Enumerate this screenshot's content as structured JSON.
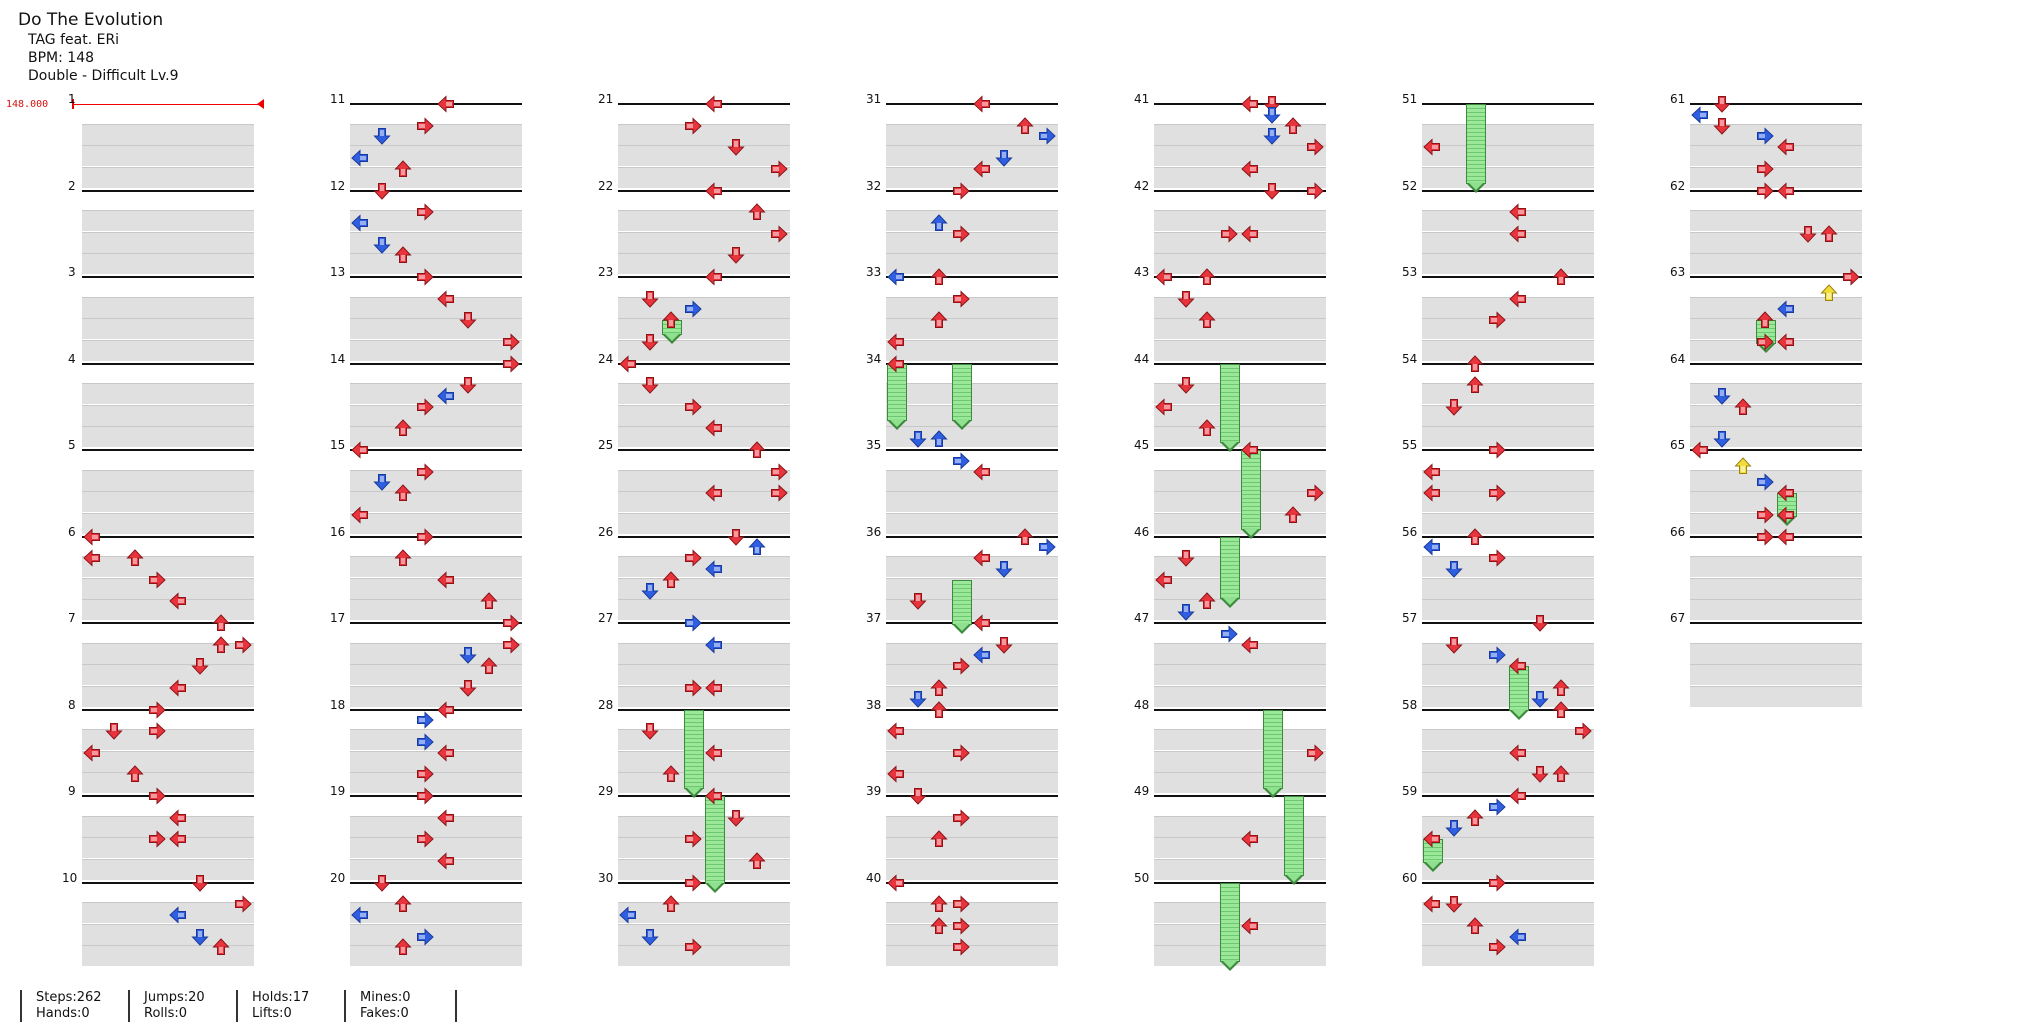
{
  "song": {
    "title": "Do The Evolution",
    "artist": "TAG feat. ERi",
    "bpm_label": "BPM: 148",
    "difficulty": "Double - Difficult Lv.9",
    "bpm_marker": "148.000"
  },
  "measure_labels": [
    "1",
    "2",
    "3",
    "4",
    "5",
    "6",
    "7",
    "8",
    "9",
    "10",
    "11",
    "12",
    "13",
    "14",
    "15",
    "16",
    "17",
    "18",
    "19",
    "20",
    "21",
    "22",
    "23",
    "24",
    "25",
    "26",
    "27",
    "28",
    "29",
    "30",
    "31",
    "32",
    "33",
    "34",
    "35",
    "36",
    "37",
    "38",
    "39",
    "40",
    "41",
    "42",
    "43",
    "44",
    "45",
    "46",
    "47",
    "48",
    "49",
    "50",
    "51",
    "52",
    "53",
    "54",
    "55",
    "56",
    "57",
    "58",
    "59",
    "60",
    "61",
    "62",
    "63",
    "64",
    "65",
    "66",
    "67"
  ],
  "stats": {
    "steps": "Steps:262",
    "hands": "Hands:0",
    "jumps": "Jumps:20",
    "rolls": "Rolls:0",
    "holds": "Holds:17",
    "lifts": "Lifts:0",
    "mines": "Mines:0",
    "fakes": "Fakes:0"
  },
  "colors": {
    "quarter": "#e8343c",
    "eighth": "#2f5fe0",
    "sixteenth": "#f2dc3c",
    "hold": "#7ed87e"
  },
  "notes": [
    [
      6,
      0.0,
      0,
      "L",
      "r"
    ],
    [
      6,
      0.25,
      0,
      "L",
      "r"
    ],
    [
      6,
      0.25,
      2,
      "U",
      "r"
    ],
    [
      6,
      0.5,
      3,
      "R",
      "r"
    ],
    [
      6,
      0.75,
      4,
      "L",
      "r"
    ],
    [
      7,
      0.0,
      6,
      "U",
      "r"
    ],
    [
      7,
      0.25,
      6,
      "U",
      "r"
    ],
    [
      7,
      0.25,
      7,
      "R",
      "r"
    ],
    [
      7,
      0.5,
      5,
      "D",
      "r"
    ],
    [
      7,
      0.75,
      4,
      "L",
      "r"
    ],
    [
      8,
      0.0,
      3,
      "R",
      "r"
    ],
    [
      8,
      0.25,
      1,
      "D",
      "r"
    ],
    [
      8,
      0.25,
      3,
      "R",
      "r"
    ],
    [
      8,
      0.5,
      0,
      "L",
      "r"
    ],
    [
      8,
      0.75,
      2,
      "U",
      "r"
    ],
    [
      9,
      0.0,
      3,
      "R",
      "r"
    ],
    [
      9,
      0.25,
      4,
      "L",
      "r"
    ],
    [
      9,
      0.5,
      3,
      "R",
      "r"
    ],
    [
      9,
      0.5,
      4,
      "L",
      "r"
    ],
    [
      10,
      0.0,
      5,
      "D",
      "r"
    ],
    [
      10,
      0.25,
      7,
      "R",
      "r"
    ],
    [
      10,
      0.375,
      4,
      "L",
      "b"
    ],
    [
      10,
      0.625,
      5,
      "D",
      "b"
    ],
    [
      10,
      0.75,
      6,
      "U",
      "r"
    ],
    [
      11,
      0.0,
      4,
      "L",
      "r"
    ],
    [
      11,
      0.25,
      3,
      "R",
      "r"
    ],
    [
      11,
      0.375,
      1,
      "D",
      "b"
    ],
    [
      11,
      0.625,
      0,
      "L",
      "b"
    ],
    [
      11,
      0.75,
      2,
      "U",
      "r"
    ],
    [
      12,
      0.0,
      1,
      "D",
      "r"
    ],
    [
      12,
      0.25,
      3,
      "R",
      "r"
    ],
    [
      12,
      0.375,
      0,
      "L",
      "b"
    ],
    [
      12,
      0.625,
      1,
      "D",
      "b"
    ],
    [
      12,
      0.75,
      2,
      "U",
      "r"
    ],
    [
      13,
      0.0,
      3,
      "R",
      "r"
    ],
    [
      13,
      0.25,
      4,
      "L",
      "r"
    ],
    [
      13,
      0.5,
      5,
      "D",
      "r"
    ],
    [
      13,
      0.75,
      7,
      "R",
      "r"
    ],
    [
      14,
      0.0,
      7,
      "R",
      "r"
    ],
    [
      14,
      0.25,
      5,
      "D",
      "r"
    ],
    [
      14,
      0.375,
      4,
      "L",
      "b"
    ],
    [
      14,
      0.5,
      3,
      "R",
      "r"
    ],
    [
      14,
      0.75,
      2,
      "U",
      "r"
    ],
    [
      15,
      0.0,
      0,
      "L",
      "r"
    ],
    [
      15,
      0.25,
      3,
      "R",
      "r"
    ],
    [
      15,
      0.375,
      1,
      "D",
      "b"
    ],
    [
      15,
      0.5,
      2,
      "U",
      "r"
    ],
    [
      15,
      0.75,
      0,
      "L",
      "r"
    ],
    [
      16,
      0.0,
      3,
      "R",
      "r"
    ],
    [
      16,
      0.25,
      2,
      "U",
      "r"
    ],
    [
      16,
      0.5,
      4,
      "L",
      "r"
    ],
    [
      16,
      0.75,
      6,
      "U",
      "r"
    ],
    [
      17,
      0.0,
      7,
      "R",
      "r"
    ],
    [
      17,
      0.25,
      7,
      "R",
      "r"
    ],
    [
      17,
      0.375,
      5,
      "D",
      "b"
    ],
    [
      17,
      0.5,
      6,
      "U",
      "r"
    ],
    [
      17,
      0.75,
      5,
      "D",
      "r"
    ],
    [
      18,
      0.0,
      4,
      "L",
      "r"
    ],
    [
      18,
      0.125,
      3,
      "R",
      "b"
    ],
    [
      18,
      0.375,
      3,
      "R",
      "b"
    ],
    [
      18,
      0.5,
      4,
      "L",
      "r"
    ],
    [
      18,
      0.75,
      3,
      "R",
      "r"
    ],
    [
      19,
      0.0,
      3,
      "R",
      "r"
    ],
    [
      19,
      0.25,
      4,
      "L",
      "r"
    ],
    [
      19,
      0.5,
      3,
      "R",
      "r"
    ],
    [
      19,
      0.75,
      4,
      "L",
      "r"
    ],
    [
      20,
      0.0,
      1,
      "D",
      "r"
    ],
    [
      20,
      0.25,
      2,
      "U",
      "r"
    ],
    [
      20,
      0.375,
      0,
      "L",
      "b"
    ],
    [
      20,
      0.625,
      3,
      "R",
      "b"
    ],
    [
      20,
      0.75,
      2,
      "U",
      "r"
    ],
    [
      21,
      0.0,
      4,
      "L",
      "r"
    ],
    [
      21,
      0.25,
      3,
      "R",
      "r"
    ],
    [
      21,
      0.5,
      5,
      "D",
      "r"
    ],
    [
      21,
      0.75,
      7,
      "R",
      "r"
    ],
    [
      22,
      0.0,
      4,
      "L",
      "r"
    ],
    [
      22,
      0.25,
      6,
      "U",
      "r"
    ],
    [
      22,
      0.5,
      7,
      "R",
      "r"
    ],
    [
      22,
      0.75,
      5,
      "D",
      "r"
    ],
    [
      23,
      0.0,
      4,
      "L",
      "r"
    ],
    [
      23,
      0.25,
      1,
      "D",
      "r"
    ],
    [
      23,
      0.375,
      3,
      "R",
      "b"
    ],
    [
      23,
      0.5,
      2,
      "U",
      "r"
    ],
    [
      23,
      0.75,
      1,
      "D",
      "r"
    ],
    [
      24,
      0.0,
      0,
      "L",
      "r"
    ],
    [
      24,
      0.25,
      1,
      "D",
      "r"
    ],
    [
      24,
      0.5,
      3,
      "R",
      "r"
    ],
    [
      24,
      0.75,
      4,
      "L",
      "r"
    ],
    [
      25,
      0.0,
      6,
      "U",
      "r"
    ],
    [
      25,
      0.25,
      7,
      "R",
      "r"
    ],
    [
      25,
      0.5,
      4,
      "L",
      "r"
    ],
    [
      25,
      0.5,
      7,
      "R",
      "r"
    ],
    [
      26,
      0.0,
      5,
      "D",
      "r"
    ],
    [
      26,
      0.125,
      6,
      "U",
      "b"
    ],
    [
      26,
      0.25,
      3,
      "R",
      "r"
    ],
    [
      26,
      0.375,
      4,
      "L",
      "b"
    ],
    [
      26,
      0.5,
      2,
      "U",
      "r"
    ],
    [
      26,
      0.625,
      1,
      "D",
      "b"
    ],
    [
      27,
      0.0,
      3,
      "R",
      "b"
    ],
    [
      27,
      0.25,
      4,
      "L",
      "b"
    ],
    [
      27,
      0.75,
      3,
      "R",
      "r"
    ],
    [
      27,
      0.75,
      4,
      "L",
      "r"
    ],
    [
      28,
      0.25,
      1,
      "D",
      "r"
    ],
    [
      28,
      0.5,
      4,
      "L",
      "r"
    ],
    [
      28,
      0.75,
      2,
      "U",
      "r"
    ],
    [
      29,
      0.0,
      4,
      "L",
      "r"
    ],
    [
      29,
      0.25,
      5,
      "D",
      "r"
    ],
    [
      29,
      0.5,
      3,
      "R",
      "r"
    ],
    [
      29,
      0.75,
      6,
      "U",
      "r"
    ],
    [
      30,
      0.0,
      3,
      "R",
      "r"
    ],
    [
      30,
      0.25,
      2,
      "U",
      "r"
    ],
    [
      30,
      0.375,
      0,
      "L",
      "b"
    ],
    [
      30,
      0.625,
      1,
      "D",
      "b"
    ],
    [
      30,
      0.75,
      3,
      "R",
      "r"
    ],
    [
      31,
      0.0,
      4,
      "L",
      "r"
    ],
    [
      31,
      0.25,
      6,
      "U",
      "r"
    ],
    [
      31,
      0.375,
      7,
      "R",
      "b"
    ],
    [
      31,
      0.625,
      5,
      "D",
      "b"
    ],
    [
      31,
      0.75,
      4,
      "L",
      "r"
    ],
    [
      32,
      0.0,
      3,
      "R",
      "r"
    ],
    [
      32,
      0.375,
      2,
      "U",
      "b"
    ],
    [
      32,
      0.5,
      3,
      "R",
      "r"
    ],
    [
      33,
      0.0,
      0,
      "L",
      "b"
    ],
    [
      33,
      0.0,
      2,
      "U",
      "r"
    ],
    [
      33,
      0.25,
      3,
      "R",
      "r"
    ],
    [
      33,
      0.5,
      2,
      "U",
      "r"
    ],
    [
      33,
      0.75,
      0,
      "L",
      "r"
    ],
    [
      34,
      0.0,
      0,
      "L",
      "r"
    ],
    [
      34,
      0.875,
      1,
      "D",
      "b"
    ],
    [
      34,
      0.875,
      2,
      "U",
      "b"
    ],
    [
      35,
      0.125,
      3,
      "R",
      "b"
    ],
    [
      35,
      0.25,
      4,
      "L",
      "r"
    ],
    [
      36,
      0.0,
      6,
      "U",
      "r"
    ],
    [
      36,
      0.125,
      7,
      "R",
      "b"
    ],
    [
      36,
      0.25,
      4,
      "L",
      "r"
    ],
    [
      36,
      0.375,
      5,
      "D",
      "b"
    ],
    [
      36,
      0.75,
      1,
      "D",
      "r"
    ],
    [
      37,
      0.0,
      4,
      "L",
      "r"
    ],
    [
      37,
      0.25,
      5,
      "D",
      "r"
    ],
    [
      37,
      0.375,
      4,
      "L",
      "b"
    ],
    [
      37,
      0.5,
      3,
      "R",
      "r"
    ],
    [
      37,
      0.75,
      2,
      "U",
      "r"
    ],
    [
      37,
      0.875,
      1,
      "D",
      "b"
    ],
    [
      38,
      0.0,
      2,
      "U",
      "r"
    ],
    [
      38,
      0.25,
      0,
      "L",
      "r"
    ],
    [
      38,
      0.5,
      3,
      "R",
      "r"
    ],
    [
      38,
      0.75,
      0,
      "L",
      "r"
    ],
    [
      39,
      0.0,
      1,
      "D",
      "r"
    ],
    [
      39,
      0.25,
      3,
      "R",
      "r"
    ],
    [
      39,
      0.5,
      2,
      "U",
      "r"
    ],
    [
      40,
      0.0,
      0,
      "L",
      "r"
    ],
    [
      40,
      0.25,
      2,
      "U",
      "r"
    ],
    [
      40,
      0.25,
      3,
      "R",
      "r"
    ],
    [
      40,
      0.5,
      2,
      "U",
      "r"
    ],
    [
      40,
      0.5,
      3,
      "R",
      "r"
    ],
    [
      40,
      0.75,
      3,
      "R",
      "r"
    ],
    [
      41,
      0.0,
      4,
      "L",
      "r"
    ],
    [
      41,
      0.0,
      5,
      "D",
      "r"
    ],
    [
      41,
      0.125,
      5,
      "D",
      "b"
    ],
    [
      41,
      0.25,
      6,
      "U",
      "r"
    ],
    [
      41,
      0.375,
      5,
      "D",
      "b"
    ],
    [
      41,
      0.5,
      7,
      "R",
      "r"
    ],
    [
      41,
      0.75,
      4,
      "L",
      "r"
    ],
    [
      42,
      0.0,
      5,
      "D",
      "r"
    ],
    [
      42,
      0.0,
      7,
      "R",
      "r"
    ],
    [
      42,
      0.5,
      3,
      "R",
      "r"
    ],
    [
      42,
      0.5,
      4,
      "L",
      "r"
    ],
    [
      43,
      0.0,
      0,
      "L",
      "r"
    ],
    [
      43,
      0.0,
      2,
      "U",
      "r"
    ],
    [
      43,
      0.25,
      1,
      "D",
      "r"
    ],
    [
      43,
      0.5,
      2,
      "U",
      "r"
    ],
    [
      44,
      0.25,
      1,
      "D",
      "r"
    ],
    [
      44,
      0.5,
      0,
      "L",
      "r"
    ],
    [
      44,
      0.75,
      2,
      "U",
      "r"
    ],
    [
      45,
      0.0,
      4,
      "L",
      "r"
    ],
    [
      45,
      0.5,
      7,
      "R",
      "r"
    ],
    [
      45,
      0.75,
      6,
      "U",
      "r"
    ],
    [
      46,
      0.25,
      1,
      "D",
      "r"
    ],
    [
      46,
      0.5,
      0,
      "L",
      "r"
    ],
    [
      46,
      0.75,
      2,
      "U",
      "r"
    ],
    [
      46,
      0.875,
      1,
      "D",
      "b"
    ],
    [
      47,
      0.125,
      3,
      "R",
      "b"
    ],
    [
      47,
      0.25,
      4,
      "L",
      "r"
    ],
    [
      48,
      0.5,
      7,
      "R",
      "r"
    ],
    [
      49,
      0.5,
      4,
      "L",
      "r"
    ],
    [
      50,
      0.5,
      4,
      "L",
      "r"
    ],
    [
      51,
      0.5,
      0,
      "L",
      "r"
    ],
    [
      52,
      0.25,
      4,
      "L",
      "r"
    ],
    [
      52,
      0.5,
      4,
      "L",
      "r"
    ],
    [
      53,
      0.0,
      6,
      "U",
      "r"
    ],
    [
      53,
      0.25,
      4,
      "L",
      "r"
    ],
    [
      53,
      0.5,
      3,
      "R",
      "r"
    ],
    [
      54,
      0.0,
      2,
      "U",
      "r"
    ],
    [
      54,
      0.25,
      2,
      "U",
      "r"
    ],
    [
      54,
      0.5,
      1,
      "D",
      "r"
    ],
    [
      55,
      0.0,
      3,
      "R",
      "r"
    ],
    [
      55,
      0.25,
      0,
      "L",
      "r"
    ],
    [
      55,
      0.5,
      0,
      "L",
      "r"
    ],
    [
      55,
      0.5,
      3,
      "R",
      "r"
    ],
    [
      56,
      0.0,
      2,
      "U",
      "r"
    ],
    [
      56,
      0.125,
      0,
      "L",
      "b"
    ],
    [
      56,
      0.25,
      3,
      "R",
      "r"
    ],
    [
      56,
      0.375,
      1,
      "D",
      "b"
    ],
    [
      57,
      0.0,
      5,
      "D",
      "r"
    ],
    [
      57,
      0.25,
      1,
      "D",
      "r"
    ],
    [
      57,
      0.375,
      3,
      "R",
      "b"
    ],
    [
      57,
      0.5,
      4,
      "L",
      "r"
    ],
    [
      57,
      0.75,
      6,
      "U",
      "r"
    ],
    [
      57,
      0.875,
      5,
      "D",
      "b"
    ],
    [
      58,
      0.0,
      6,
      "U",
      "r"
    ],
    [
      58,
      0.25,
      7,
      "R",
      "r"
    ],
    [
      58,
      0.5,
      4,
      "L",
      "r"
    ],
    [
      58,
      0.75,
      5,
      "D",
      "r"
    ],
    [
      58,
      0.75,
      6,
      "U",
      "r"
    ],
    [
      59,
      0.0,
      4,
      "L",
      "r"
    ],
    [
      59,
      0.125,
      3,
      "R",
      "b"
    ],
    [
      59,
      0.25,
      2,
      "U",
      "r"
    ],
    [
      59,
      0.375,
      1,
      "D",
      "b"
    ],
    [
      59,
      0.5,
      0,
      "L",
      "r"
    ],
    [
      60,
      0.0,
      3,
      "R",
      "r"
    ],
    [
      60,
      0.25,
      0,
      "L",
      "r"
    ],
    [
      60,
      0.25,
      1,
      "D",
      "r"
    ],
    [
      60,
      0.5,
      2,
      "U",
      "r"
    ],
    [
      60,
      0.625,
      4,
      "L",
      "b"
    ],
    [
      60,
      0.75,
      3,
      "R",
      "r"
    ],
    [
      61,
      0.0,
      1,
      "D",
      "r"
    ],
    [
      61,
      0.125,
      0,
      "L",
      "b"
    ],
    [
      61,
      0.25,
      1,
      "D",
      "r"
    ],
    [
      61,
      0.375,
      3,
      "R",
      "b"
    ],
    [
      61,
      0.5,
      4,
      "L",
      "r"
    ],
    [
      61,
      0.75,
      3,
      "R",
      "r"
    ],
    [
      62,
      0.0,
      3,
      "R",
      "r"
    ],
    [
      62,
      0.0,
      4,
      "L",
      "r"
    ],
    [
      62,
      0.5,
      5,
      "D",
      "r"
    ],
    [
      62,
      0.5,
      6,
      "U",
      "r"
    ],
    [
      63,
      0.0,
      7,
      "R",
      "r"
    ],
    [
      63,
      0.1875,
      6,
      "U",
      "y"
    ],
    [
      63,
      0.375,
      4,
      "L",
      "b"
    ],
    [
      63,
      0.5,
      3,
      "U",
      "r"
    ],
    [
      63,
      0.75,
      3,
      "R",
      "r"
    ],
    [
      63,
      0.75,
      4,
      "L",
      "r"
    ],
    [
      64,
      0.375,
      1,
      "D",
      "b"
    ],
    [
      64,
      0.5,
      2,
      "U",
      "r"
    ],
    [
      64,
      0.875,
      1,
      "D",
      "b"
    ],
    [
      65,
      0.0,
      0,
      "L",
      "r"
    ],
    [
      65,
      0.1875,
      2,
      "U",
      "y"
    ],
    [
      65,
      0.375,
      3,
      "R",
      "b"
    ],
    [
      65,
      0.5,
      4,
      "L",
      "r"
    ],
    [
      65,
      0.75,
      3,
      "R",
      "r"
    ],
    [
      65,
      0.75,
      4,
      "L",
      "r"
    ],
    [
      66,
      0.0,
      3,
      "R",
      "r"
    ],
    [
      66,
      0.0,
      4,
      "L",
      "r"
    ]
  ],
  "holds": [
    [
      23,
      0.5,
      2,
      23,
      0.75
    ],
    [
      34,
      0.0,
      0,
      34,
      0.75
    ],
    [
      34,
      0.0,
      3,
      34,
      0.75
    ],
    [
      36,
      0.5,
      3,
      36,
      1.1
    ],
    [
      44,
      0.0,
      3,
      45,
      0.0
    ],
    [
      45,
      0.0,
      4,
      46,
      0.0
    ],
    [
      46,
      0.0,
      3,
      46,
      0.8
    ],
    [
      48,
      0.0,
      5,
      49,
      0.0
    ],
    [
      49,
      0.0,
      6,
      50,
      0.0
    ],
    [
      50,
      0.0,
      3,
      51,
      0.15
    ],
    [
      28,
      0.0,
      3,
      29,
      0.0
    ],
    [
      29,
      0.0,
      4,
      30,
      0.1
    ],
    [
      51,
      0.0,
      2,
      52,
      0.0
    ],
    [
      57,
      0.5,
      4,
      57,
      1.1
    ],
    [
      59,
      0.5,
      0,
      59,
      0.85
    ],
    [
      63,
      0.5,
      3,
      63,
      0.85
    ],
    [
      65,
      0.5,
      4,
      65,
      0.85
    ]
  ]
}
